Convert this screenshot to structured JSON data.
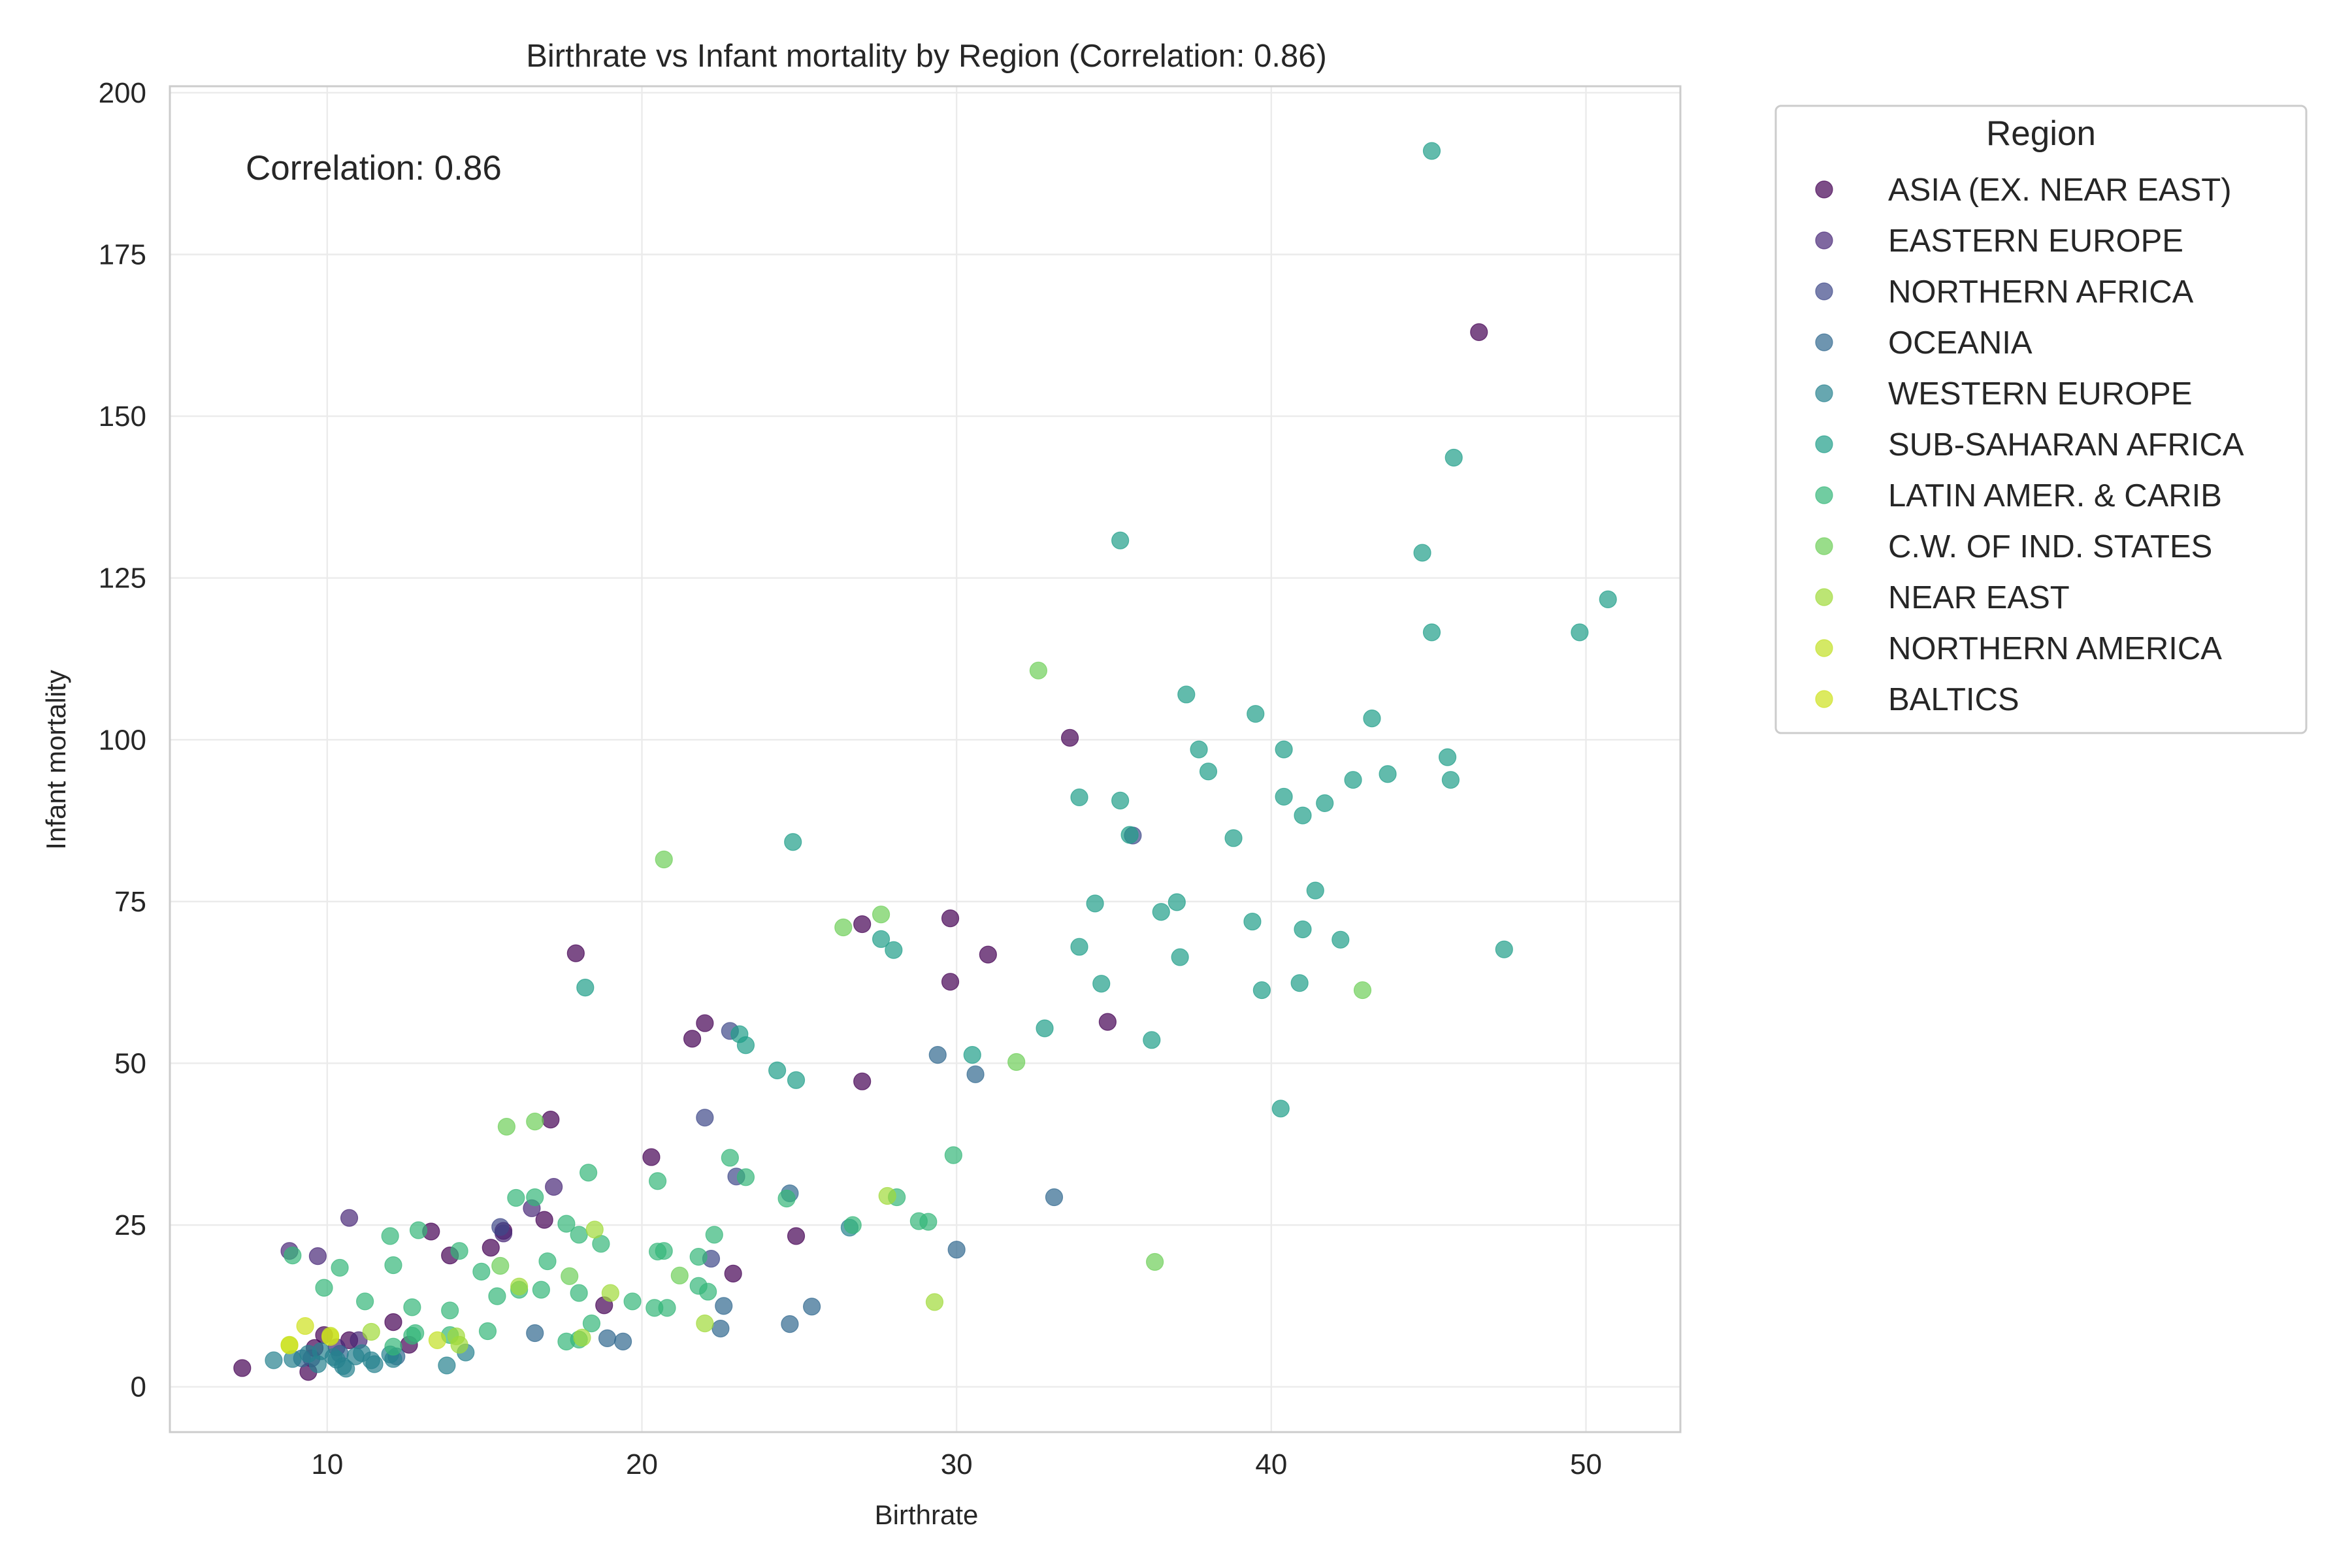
{
  "chart_data": {
    "type": "scatter",
    "title": "Birthrate vs Infant mortality by Region (Correlation: 0.86)",
    "xlabel": "Birthrate",
    "ylabel": "Infant mortality",
    "xlim": [
      5,
      53
    ],
    "ylim": [
      -7,
      201
    ],
    "xticks": [
      10,
      20,
      30,
      40,
      50
    ],
    "yticks": [
      0,
      25,
      50,
      75,
      100,
      125,
      150,
      175,
      200
    ],
    "grid": true,
    "annotation": "Correlation: 0.86",
    "legend": {
      "title": "Region",
      "placement": "outside-top-right"
    },
    "point_alpha": 0.7,
    "series": [
      {
        "name": "ASIA (EX. NEAR EAST)",
        "color": "#440154",
        "points": [
          [
            46.6,
            163
          ],
          [
            33.6,
            100.3
          ],
          [
            27,
            71.5
          ],
          [
            29.8,
            72.4
          ],
          [
            31,
            66.8
          ],
          [
            17.9,
            67
          ],
          [
            29.8,
            62.6
          ],
          [
            22,
            56.2
          ],
          [
            21.6,
            53.8
          ],
          [
            34.8,
            56.4
          ],
          [
            27,
            47.2
          ],
          [
            17.1,
            41.3
          ],
          [
            20.3,
            35.5
          ],
          [
            15.6,
            24.1
          ],
          [
            13.3,
            24
          ],
          [
            16.9,
            25.8
          ],
          [
            13.9,
            20.3
          ],
          [
            15.2,
            21.5
          ],
          [
            24.9,
            23.3
          ],
          [
            22.9,
            17.5
          ],
          [
            18.8,
            12.6
          ],
          [
            12.1,
            10
          ],
          [
            12.6,
            6.5
          ],
          [
            10.7,
            7.2
          ],
          [
            9.6,
            6
          ],
          [
            9.9,
            8
          ],
          [
            9.4,
            2.3
          ],
          [
            7.3,
            2.9
          ]
        ]
      },
      {
        "name": "EASTERN EUROPE",
        "color": "#482878",
        "points": [
          [
            10.7,
            26.1
          ],
          [
            9.7,
            20.2
          ],
          [
            8.8,
            21
          ],
          [
            15.6,
            23.7
          ],
          [
            17.2,
            30.9
          ],
          [
            16.5,
            27.6
          ],
          [
            9.5,
            4.4
          ],
          [
            10.3,
            6.1
          ],
          [
            11,
            7.2
          ]
        ]
      },
      {
        "name": "NORTHERN AFRICA",
        "color": "#3e4989",
        "points": [
          [
            35.6,
            85.2
          ],
          [
            22,
            41.6
          ],
          [
            22.8,
            55
          ],
          [
            22.2,
            19.8
          ],
          [
            23,
            32.5
          ],
          [
            15.5,
            24.7
          ]
        ]
      },
      {
        "name": "OCEANIA",
        "color": "#31688e",
        "points": [
          [
            29.4,
            51.3
          ],
          [
            30.6,
            48.3
          ],
          [
            33.1,
            29.3
          ],
          [
            24.7,
            29.9
          ],
          [
            30,
            21.2
          ],
          [
            25.4,
            12.4
          ],
          [
            24.7,
            9.7
          ],
          [
            22.5,
            9
          ],
          [
            22.6,
            12.5
          ],
          [
            18.9,
            7.5
          ],
          [
            19.4,
            7
          ],
          [
            16.6,
            8.3
          ],
          [
            12.2,
            4.7
          ],
          [
            10.4,
            5.1
          ],
          [
            9.2,
            4.4
          ]
        ]
      },
      {
        "name": "WESTERN EUROPE",
        "color": "#26828e",
        "points": [
          [
            10.3,
            4.2
          ],
          [
            10.9,
            4.7
          ],
          [
            9.7,
            3.5
          ],
          [
            8.3,
            4.1
          ],
          [
            10.5,
            3.2
          ],
          [
            9.4,
            5.1
          ],
          [
            11.5,
            3.5
          ],
          [
            12.1,
            4.3
          ],
          [
            8.9,
            4.3
          ],
          [
            11.1,
            5.2
          ],
          [
            13.8,
            3.3
          ],
          [
            10.2,
            4.6
          ],
          [
            14.4,
            5.3
          ],
          [
            12,
            5
          ],
          [
            9.8,
            5.5
          ],
          [
            10.6,
            2.8
          ],
          [
            11.4,
            4.1
          ],
          [
            26.6,
            24.6
          ]
        ]
      },
      {
        "name": "SUB-SAHARAN AFRICA",
        "color": "#1f9e89",
        "points": [
          [
            45.1,
            191
          ],
          [
            45.8,
            143.6
          ],
          [
            35.2,
            130.8
          ],
          [
            44.8,
            128.9
          ],
          [
            45.1,
            116.6
          ],
          [
            49.8,
            116.6
          ],
          [
            50.7,
            121.7
          ],
          [
            37.3,
            107
          ],
          [
            39.5,
            104
          ],
          [
            43.2,
            103.3
          ],
          [
            45.6,
            97.3
          ],
          [
            40.4,
            98.5
          ],
          [
            37.7,
            98.5
          ],
          [
            38,
            95.1
          ],
          [
            45.7,
            93.8
          ],
          [
            43.7,
            94.7
          ],
          [
            42.6,
            93.8
          ],
          [
            41.7,
            90.2
          ],
          [
            41,
            88.3
          ],
          [
            40.4,
            91.2
          ],
          [
            35.2,
            90.6
          ],
          [
            33.9,
            91.1
          ],
          [
            35.5,
            85.3
          ],
          [
            38.8,
            84.8
          ],
          [
            24.8,
            84.2
          ],
          [
            34.4,
            74.7
          ],
          [
            36.5,
            73.4
          ],
          [
            37,
            74.9
          ],
          [
            41.4,
            76.7
          ],
          [
            39.4,
            71.9
          ],
          [
            41,
            70.7
          ],
          [
            42.2,
            69.1
          ],
          [
            47.4,
            67.6
          ],
          [
            27.6,
            69.2
          ],
          [
            28,
            67.5
          ],
          [
            33.9,
            68
          ],
          [
            37.1,
            66.4
          ],
          [
            34.6,
            62.3
          ],
          [
            39.7,
            61.3
          ],
          [
            40.9,
            62.4
          ],
          [
            18.2,
            61.7
          ],
          [
            36.2,
            53.6
          ],
          [
            32.8,
            55.4
          ],
          [
            30.5,
            51.3
          ],
          [
            23.1,
            54.5
          ],
          [
            23.3,
            52.8
          ],
          [
            24.3,
            48.9
          ],
          [
            24.9,
            47.4
          ],
          [
            40.3,
            43
          ]
        ]
      },
      {
        "name": "LATIN AMER. & CARIB",
        "color": "#35b779",
        "points": [
          [
            29.9,
            35.8
          ],
          [
            23.3,
            32.4
          ],
          [
            24.6,
            29.1
          ],
          [
            28.1,
            29.3
          ],
          [
            18.3,
            33.1
          ],
          [
            16.6,
            29.3
          ],
          [
            20.5,
            31.8
          ],
          [
            22.8,
            35.4
          ],
          [
            17.6,
            25.2
          ],
          [
            12.9,
            24.2
          ],
          [
            14.2,
            21
          ],
          [
            12.1,
            18.8
          ],
          [
            16.1,
            15
          ],
          [
            20.5,
            20.9
          ],
          [
            20.7,
            21
          ],
          [
            22.3,
            23.5
          ],
          [
            21.8,
            20.1
          ],
          [
            17,
            19.4
          ],
          [
            16,
            29.2
          ],
          [
            18,
            14.5
          ],
          [
            18.7,
            22.1
          ],
          [
            19.7,
            13.2
          ],
          [
            20.4,
            12.2
          ],
          [
            20.8,
            12.2
          ],
          [
            22.1,
            14.7
          ],
          [
            21.8,
            15.6
          ],
          [
            14.9,
            17.8
          ],
          [
            12.7,
            12.3
          ],
          [
            13.9,
            11.8
          ],
          [
            15.4,
            14
          ],
          [
            15.1,
            8.6
          ],
          [
            11.2,
            13.2
          ],
          [
            9.9,
            15.3
          ],
          [
            10.4,
            18.4
          ],
          [
            8.9,
            20.3
          ],
          [
            12,
            23.3
          ],
          [
            12.7,
            7.9
          ],
          [
            13.9,
            8
          ],
          [
            18.4,
            9.8
          ],
          [
            17.6,
            7
          ],
          [
            18,
            7.3
          ],
          [
            28.8,
            25.6
          ],
          [
            29.1,
            25.5
          ],
          [
            18,
            23.5
          ],
          [
            26.7,
            25
          ],
          [
            16.8,
            15
          ],
          [
            12.1,
            6.2
          ],
          [
            12.8,
            8.3
          ]
        ]
      },
      {
        "name": "C.W. OF IND. STATES",
        "color": "#6ece58",
        "points": [
          [
            32.6,
            110.7
          ],
          [
            20.7,
            81.5
          ],
          [
            26.4,
            71
          ],
          [
            27.6,
            73
          ],
          [
            31.9,
            50.2
          ],
          [
            42.9,
            61.3
          ],
          [
            36.3,
            19.3
          ],
          [
            15.7,
            40.2
          ],
          [
            16.6,
            41
          ],
          [
            15.5,
            18.7
          ],
          [
            17.7,
            17.1
          ],
          [
            21.2,
            17.2
          ]
        ]
      },
      {
        "name": "NEAR EAST",
        "color": "#a0da39",
        "points": [
          [
            27.8,
            29.5
          ],
          [
            29.3,
            13.1
          ],
          [
            18.5,
            24.3
          ],
          [
            19,
            14.5
          ],
          [
            22,
            9.8
          ],
          [
            18.1,
            7.6
          ],
          [
            16.1,
            15.5
          ],
          [
            14.1,
            7.8
          ],
          [
            14.2,
            6.5
          ],
          [
            11.4,
            8.5
          ]
        ]
      },
      {
        "name": "NORTHERN AMERICA",
        "color": "#c2df23",
        "points": [
          [
            10.1,
            7.9
          ],
          [
            13.5,
            7.2
          ],
          [
            8.8,
            6.5
          ]
        ]
      },
      {
        "name": "BALTICS",
        "color": "#cde11d",
        "points": [
          [
            9.3,
            9.4
          ],
          [
            10.1,
            7.7
          ],
          [
            8.8,
            6.4
          ]
        ]
      }
    ]
  }
}
